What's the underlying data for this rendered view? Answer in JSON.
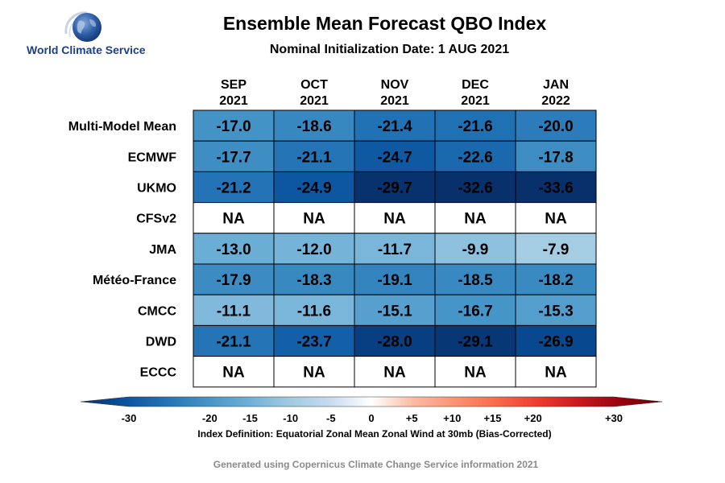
{
  "logo": {
    "text": "World Climate Service",
    "icon": "globe-icon"
  },
  "chart_data": {
    "type": "heatmap",
    "title": "Ensemble Mean Forecast QBO Index",
    "subtitle": "Nominal Initialization Date: 1 AUG 2021",
    "columns": [
      {
        "month": "SEP",
        "year": "2021"
      },
      {
        "month": "OCT",
        "year": "2021"
      },
      {
        "month": "NOV",
        "year": "2021"
      },
      {
        "month": "DEC",
        "year": "2021"
      },
      {
        "month": "JAN",
        "year": "2022"
      }
    ],
    "rows": [
      {
        "model": "Multi-Model Mean",
        "values": [
          "-17.0",
          "-18.6",
          "-21.4",
          "-21.6",
          "-20.0"
        ]
      },
      {
        "model": "ECMWF",
        "values": [
          "-17.7",
          "-21.1",
          "-24.7",
          "-22.6",
          "-17.8"
        ]
      },
      {
        "model": "UKMO",
        "values": [
          "-21.2",
          "-24.9",
          "-29.7",
          "-32.6",
          "-33.6"
        ]
      },
      {
        "model": "CFSv2",
        "values": [
          "NA",
          "NA",
          "NA",
          "NA",
          "NA"
        ]
      },
      {
        "model": "JMA",
        "values": [
          "-13.0",
          "-12.0",
          "-11.7",
          "-9.9",
          "-7.9"
        ]
      },
      {
        "model": "Météo-France",
        "values": [
          "-17.9",
          "-18.3",
          "-19.1",
          "-18.5",
          "-18.2"
        ]
      },
      {
        "model": "CMCC",
        "values": [
          "-11.1",
          "-11.6",
          "-15.1",
          "-16.7",
          "-15.3"
        ]
      },
      {
        "model": "DWD",
        "values": [
          "-21.1",
          "-23.7",
          "-28.0",
          "-29.1",
          "-26.9"
        ]
      },
      {
        "model": "ECCC",
        "values": [
          "NA",
          "NA",
          "NA",
          "NA",
          "NA"
        ]
      }
    ],
    "colorbar": {
      "range": [
        -30,
        30
      ],
      "tick_labels": [
        "-30",
        "-20",
        "-15",
        "-10",
        "-5",
        "0",
        "+5",
        "+10",
        "+15",
        "+20",
        "+30"
      ],
      "colors": [
        "#08306b",
        "#08519c",
        "#2171b5",
        "#4292c6",
        "#6baed6",
        "#9ecae1",
        "#c6dbef",
        "#ffffff",
        "#fcbba1",
        "#fc9272",
        "#fb6a4a",
        "#ef3b2c",
        "#cb181d",
        "#99000d",
        "#67000d"
      ]
    },
    "index_definition": "Index Definition: Equatorial Zonal Mean Zonal Wind at 30mb (Bias-Corrected)"
  },
  "footer": "Generated using Copernicus Climate Change Service information 2021"
}
